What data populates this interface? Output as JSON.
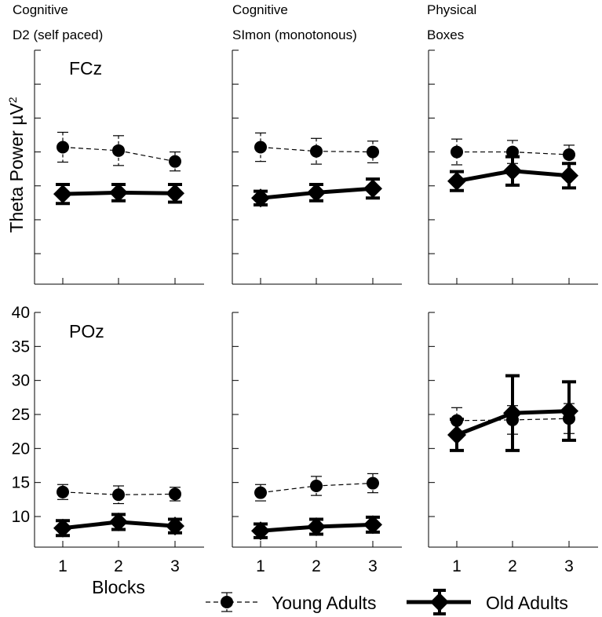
{
  "figure": {
    "y_axis_label": "Theta Power  µV",
    "y_axis_label_sup": "2",
    "x_axis_label": "Blocks",
    "legend": {
      "young": "Young Adults",
      "old": "Old Adults"
    },
    "colors": {
      "line": "#000000",
      "background": "#ffffff"
    }
  },
  "chart_data": {
    "type": "line",
    "x_ticks": [
      "1",
      "2",
      "3"
    ],
    "y_ticks": [
      "10",
      "15",
      "20",
      "25",
      "30",
      "35",
      "40"
    ],
    "ylim": [
      5.5,
      40
    ],
    "columns": [
      {
        "title1": "Cognitive",
        "title2": "D2 (self paced)"
      },
      {
        "title1": "Cognitive",
        "title2": "SImon (monotonous)"
      },
      {
        "title1": "Physical",
        "title2": "Boxes"
      }
    ],
    "rows": [
      {
        "electrode": "FCz"
      },
      {
        "electrode": "POz"
      }
    ],
    "panels": [
      {
        "row": 0,
        "col": 0,
        "series": [
          {
            "name": "Young Adults",
            "x": [
              1,
              2,
              3
            ],
            "y": [
              25.7,
              25.2,
              23.6
            ],
            "err": [
              2.2,
              2.2,
              1.4
            ]
          },
          {
            "name": "Old Adults",
            "x": [
              1,
              2,
              3
            ],
            "y": [
              18.8,
              19.0,
              18.9
            ],
            "err": [
              1.4,
              1.2,
              1.3
            ]
          }
        ]
      },
      {
        "row": 0,
        "col": 1,
        "series": [
          {
            "name": "Young Adults",
            "x": [
              1,
              2,
              3
            ],
            "y": [
              25.7,
              25.1,
              25.0
            ],
            "err": [
              2.1,
              1.9,
              1.6
            ]
          },
          {
            "name": "Old Adults",
            "x": [
              1,
              2,
              3
            ],
            "y": [
              18.2,
              19.0,
              19.6
            ],
            "err": [
              1.0,
              1.2,
              1.4
            ]
          }
        ]
      },
      {
        "row": 0,
        "col": 2,
        "series": [
          {
            "name": "Young Adults",
            "x": [
              1,
              2,
              3
            ],
            "y": [
              25.0,
              25.0,
              24.6
            ],
            "err": [
              1.9,
              1.7,
              1.4
            ]
          },
          {
            "name": "Old Adults",
            "x": [
              1,
              2,
              3
            ],
            "y": [
              20.7,
              22.2,
              21.5
            ],
            "err": [
              1.4,
              2.1,
              1.8
            ]
          }
        ]
      },
      {
        "row": 1,
        "col": 0,
        "series": [
          {
            "name": "Young Adults",
            "x": [
              1,
              2,
              3
            ],
            "y": [
              13.6,
              13.2,
              13.3
            ],
            "err": [
              1.1,
              1.3,
              1.0
            ]
          },
          {
            "name": "Old Adults",
            "x": [
              1,
              2,
              3
            ],
            "y": [
              8.3,
              9.2,
              8.6
            ],
            "err": [
              1.1,
              1.1,
              1.0
            ]
          }
        ]
      },
      {
        "row": 1,
        "col": 1,
        "series": [
          {
            "name": "Young Adults",
            "x": [
              1,
              2,
              3
            ],
            "y": [
              13.5,
              14.5,
              14.9
            ],
            "err": [
              1.2,
              1.4,
              1.4
            ]
          },
          {
            "name": "Old Adults",
            "x": [
              1,
              2,
              3
            ],
            "y": [
              7.9,
              8.5,
              8.8
            ],
            "err": [
              1.0,
              1.1,
              1.1
            ]
          }
        ]
      },
      {
        "row": 1,
        "col": 2,
        "series": [
          {
            "name": "Young Adults",
            "x": [
              1,
              2,
              3
            ],
            "y": [
              24.1,
              24.2,
              24.4
            ],
            "err": [
              1.9,
              2.1,
              2.2
            ]
          },
          {
            "name": "Old Adults",
            "x": [
              1,
              2,
              3
            ],
            "y": [
              22.0,
              25.2,
              25.5
            ],
            "err": [
              2.3,
              5.5,
              4.3
            ]
          }
        ]
      }
    ]
  }
}
